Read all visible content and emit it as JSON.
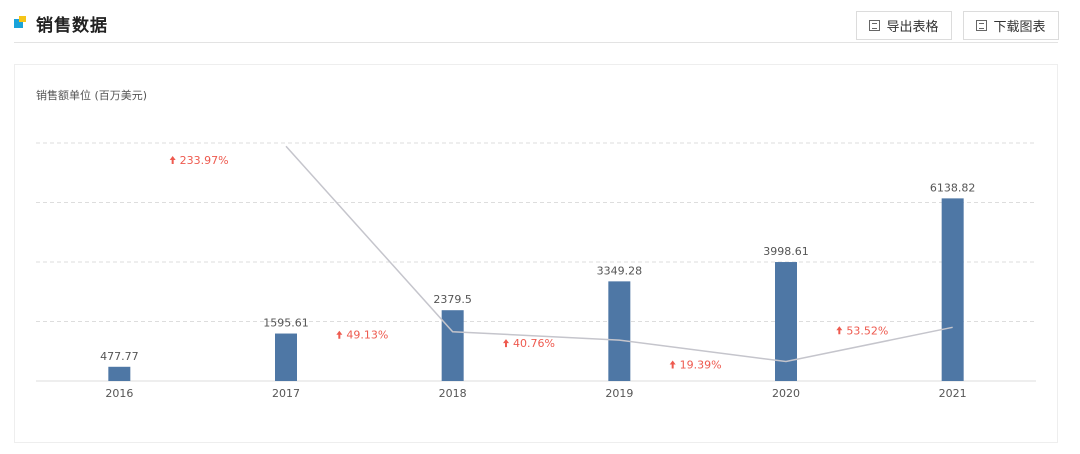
{
  "header": {
    "title": "销售数据",
    "export_label": "导出表格",
    "download_label": "下载图表"
  },
  "colors": {
    "bar": "#4e77a5",
    "line": "#c5c5cc",
    "growth": "#ee5a4f",
    "title_icon_primary": "#1aa3d9",
    "title_icon_secondary": "#f5c518"
  },
  "chart_data": {
    "type": "bar",
    "unit_label": "销售额单位 (百万美元)",
    "categories": [
      "2016",
      "2017",
      "2018",
      "2019",
      "2020",
      "2021"
    ],
    "values": [
      477.77,
      1595.61,
      2379.5,
      3349.28,
      3998.61,
      6138.82
    ],
    "value_labels": [
      "477.77",
      "1595.61",
      "2379.5",
      "3349.28",
      "3998.61",
      "6138.82"
    ],
    "ylim": [
      0,
      8000
    ],
    "grid": true,
    "growth_line": {
      "x": [
        "2017",
        "2018",
        "2019",
        "2020",
        "2021"
      ],
      "values": [
        233.97,
        49.13,
        40.76,
        19.39,
        53.52
      ],
      "labels": [
        "233.97%",
        "49.13%",
        "40.76%",
        "19.39%",
        "53.52%"
      ],
      "ylim": [
        0,
        300
      ]
    }
  }
}
